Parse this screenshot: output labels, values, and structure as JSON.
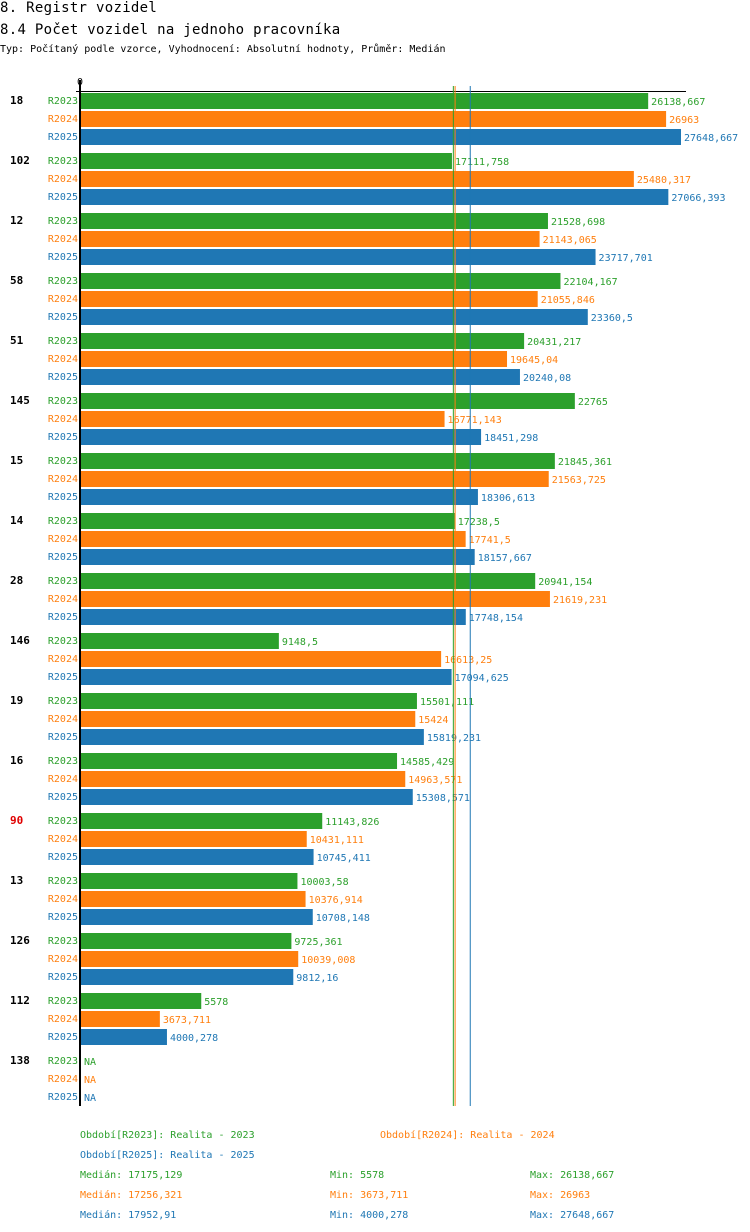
{
  "header": {
    "title": "8. Registr vozidel",
    "subtitle": "8.4 Počet vozidel na jednoho pracovníka",
    "description": "Typ: Počítaný podle vzorce, Vyhodnocení: Absolutní hodnoty, Průměr: Medián"
  },
  "colors": {
    "R2023": "#2ca02c",
    "R2024": "#ff7f0e",
    "R2025": "#1f77b4",
    "highlight_label": "#e00000",
    "axis": "#000000"
  },
  "chart_data": {
    "type": "bar",
    "orientation": "horizontal",
    "title": "8.4 Počet vozidel na jednoho pracovníka",
    "axis_zero_label": "0",
    "xlim": [
      0,
      27648.667
    ],
    "series_names": [
      "R2023",
      "R2024",
      "R2025"
    ],
    "categories": [
      {
        "label": "18",
        "highlight": false,
        "values": [
          26138.667,
          26963,
          27648.667
        ],
        "labels": [
          "26138,667",
          "26963",
          "27648,667"
        ]
      },
      {
        "label": "102",
        "highlight": false,
        "values": [
          17111.758,
          25480.317,
          27066.393
        ],
        "labels": [
          "17111,758",
          "25480,317",
          "27066,393"
        ]
      },
      {
        "label": "12",
        "highlight": false,
        "values": [
          21528.698,
          21143.065,
          23717.701
        ],
        "labels": [
          "21528,698",
          "21143,065",
          "23717,701"
        ]
      },
      {
        "label": "58",
        "highlight": false,
        "values": [
          22104.167,
          21055.846,
          23360.5
        ],
        "labels": [
          "22104,167",
          "21055,846",
          "23360,5"
        ]
      },
      {
        "label": "51",
        "highlight": false,
        "values": [
          20431.217,
          19645.04,
          20240.08
        ],
        "labels": [
          "20431,217",
          "19645,04",
          "20240,08"
        ]
      },
      {
        "label": "145",
        "highlight": false,
        "values": [
          22765,
          16771.143,
          18451.298
        ],
        "labels": [
          "22765",
          "16771,143",
          "18451,298"
        ]
      },
      {
        "label": "15",
        "highlight": false,
        "values": [
          21845.361,
          21563.725,
          18306.613
        ],
        "labels": [
          "21845,361",
          "21563,725",
          "18306,613"
        ]
      },
      {
        "label": "14",
        "highlight": false,
        "values": [
          17238.5,
          17741.5,
          18157.667
        ],
        "labels": [
          "17238,5",
          "17741,5",
          "18157,667"
        ]
      },
      {
        "label": "28",
        "highlight": false,
        "values": [
          20941.154,
          21619.231,
          17748.154
        ],
        "labels": [
          "20941,154",
          "21619,231",
          "17748,154"
        ]
      },
      {
        "label": "146",
        "highlight": false,
        "values": [
          9148.5,
          16613.25,
          17094.625
        ],
        "labels": [
          "9148,5",
          "16613,25",
          "17094,625"
        ]
      },
      {
        "label": "19",
        "highlight": false,
        "values": [
          15501.111,
          15424,
          15819.231
        ],
        "labels": [
          "15501,111",
          "15424",
          "15819,231"
        ]
      },
      {
        "label": "16",
        "highlight": false,
        "values": [
          14585.429,
          14963.571,
          15308.571
        ],
        "labels": [
          "14585,429",
          "14963,571",
          "15308,571"
        ]
      },
      {
        "label": "90",
        "highlight": true,
        "values": [
          11143.826,
          10431.111,
          10745.411
        ],
        "labels": [
          "11143,826",
          "10431,111",
          "10745,411"
        ]
      },
      {
        "label": "13",
        "highlight": false,
        "values": [
          10003.58,
          10376.914,
          10708.148
        ],
        "labels": [
          "10003,58",
          "10376,914",
          "10708,148"
        ]
      },
      {
        "label": "126",
        "highlight": false,
        "values": [
          9725.361,
          10039.008,
          9812.16
        ],
        "labels": [
          "9725,361",
          "10039,008",
          "9812,16"
        ]
      },
      {
        "label": "112",
        "highlight": false,
        "values": [
          5578,
          3673.711,
          4000.278
        ],
        "labels": [
          "5578",
          "3673,711",
          "4000,278"
        ]
      },
      {
        "label": "138",
        "highlight": false,
        "values": [
          null,
          null,
          null
        ],
        "labels": [
          "NA",
          "NA",
          "NA"
        ]
      }
    ],
    "medians": [
      17175.129,
      17256.321,
      17952.91
    ],
    "legend": [
      {
        "series": "R2023",
        "text": "Období[R2023]: Realita - 2023"
      },
      {
        "series": "R2024",
        "text": "Období[R2024]: Realita - 2024"
      },
      {
        "series": "R2025",
        "text": "Období[R2025]: Realita - 2025"
      }
    ],
    "stats": [
      {
        "series": "R2023",
        "median": "Medián: 17175,129",
        "min": "Min: 5578",
        "max": "Max: 26138,667"
      },
      {
        "series": "R2024",
        "median": "Medián: 17256,321",
        "min": "Min: 3673,711",
        "max": "Max: 26963"
      },
      {
        "series": "R2025",
        "median": "Medián: 17952,91",
        "min": "Min: 4000,278",
        "max": "Max: 27648,667"
      }
    ]
  }
}
